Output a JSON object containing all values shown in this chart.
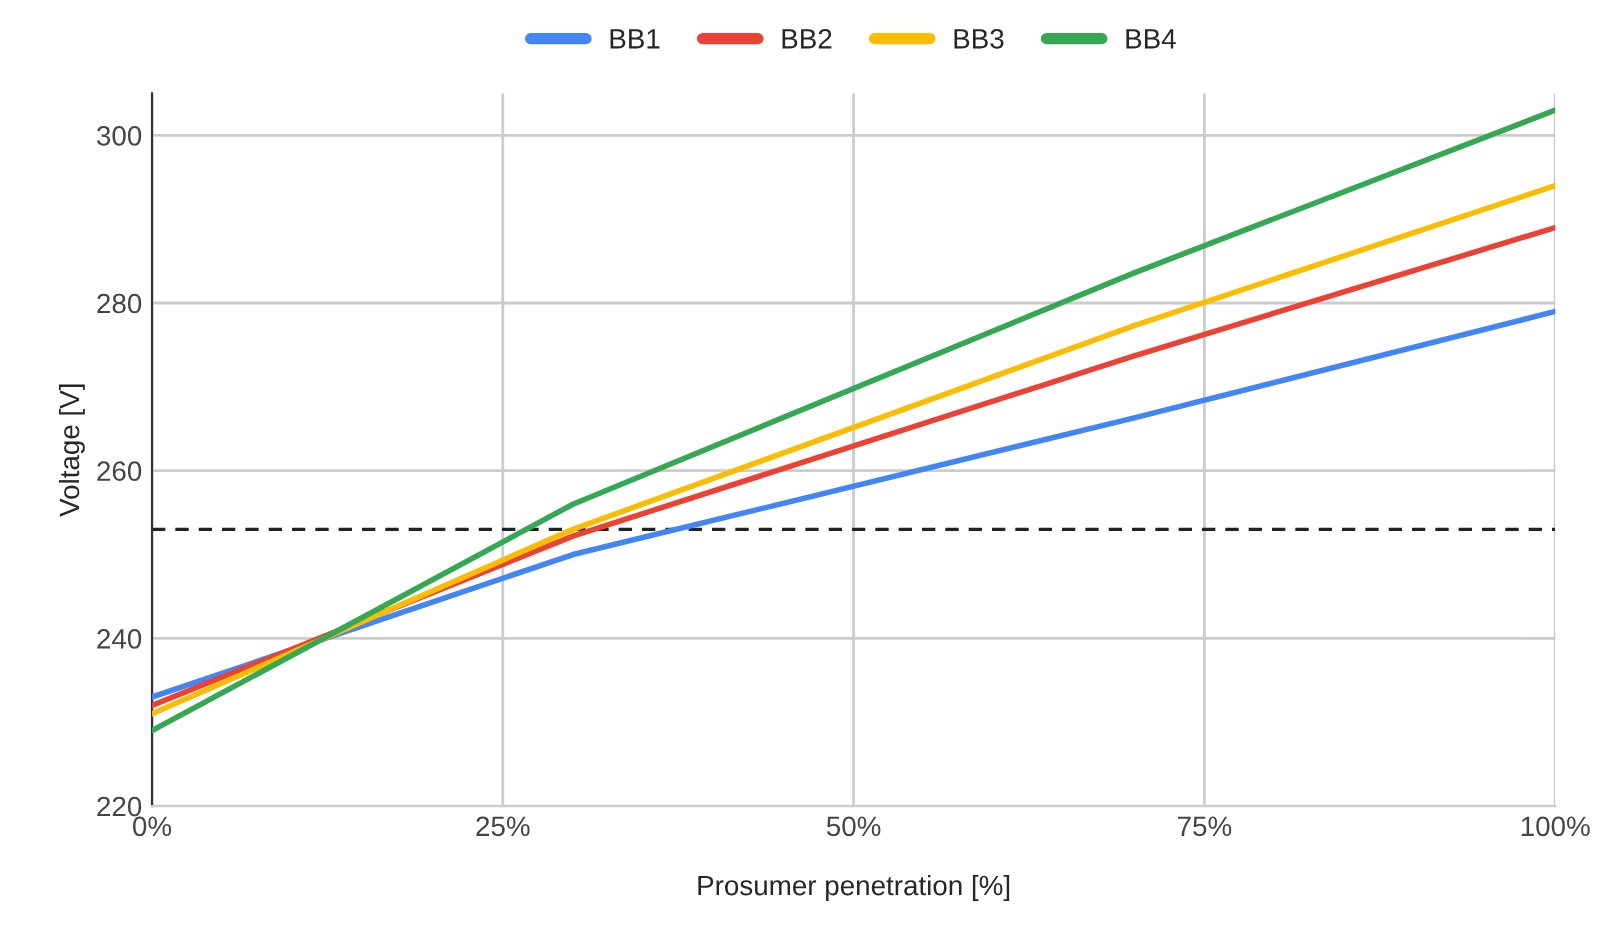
{
  "chart_data": {
    "type": "line",
    "xlabel": "Prosumer penetration [%]",
    "ylabel": "Voltage [V]",
    "x": [
      0,
      30,
      70,
      100
    ],
    "series": [
      {
        "name": "BB1",
        "color": "#4285f4",
        "values": [
          233,
          250,
          266.3,
          279
        ]
      },
      {
        "name": "BB2",
        "color": "#ea4335",
        "values": [
          232,
          252.2,
          273.7,
          289
        ]
      },
      {
        "name": "BB3",
        "color": "#fbbc04",
        "values": [
          231,
          253,
          277.3,
          294
        ]
      },
      {
        "name": "BB4",
        "color": "#34a853",
        "values": [
          229,
          256,
          283.6,
          303
        ]
      }
    ],
    "xlim": [
      0,
      100
    ],
    "ylim": [
      220,
      305
    ],
    "xticks": [
      {
        "value": 0,
        "label": "0%"
      },
      {
        "value": 25,
        "label": "25%"
      },
      {
        "value": 50,
        "label": "50%"
      },
      {
        "value": 75,
        "label": "75%"
      },
      {
        "value": 100,
        "label": "100%"
      }
    ],
    "yticks": [
      220,
      240,
      260,
      280,
      300
    ],
    "ref_lines": [
      {
        "axis": "y",
        "value": 253,
        "label": null,
        "color": "#222222",
        "line_style": "dashed"
      }
    ],
    "grid": true,
    "legend": "top",
    "marker": "none",
    "line_style": "solid"
  }
}
